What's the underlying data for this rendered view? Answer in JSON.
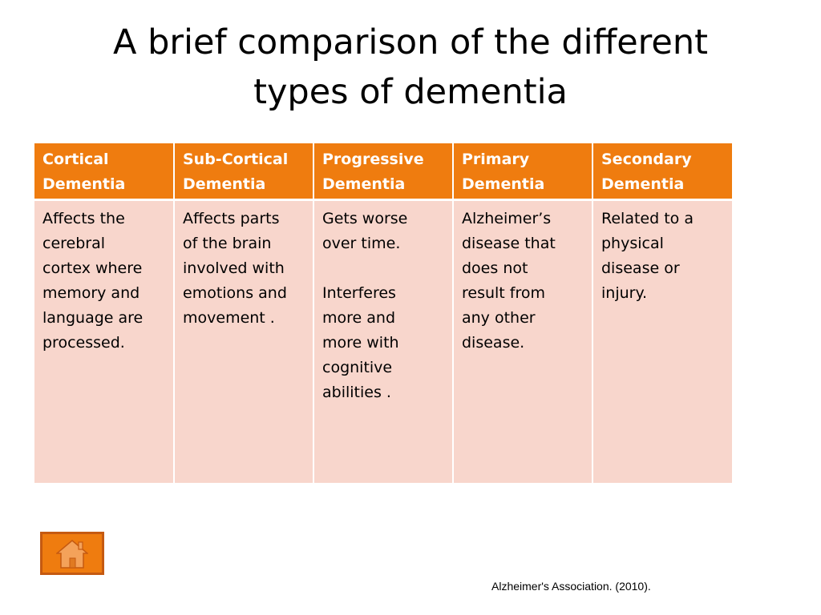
{
  "slide": {
    "title_line1": "A brief comparison of the different",
    "title_line2": "types of dementia",
    "citation": "Alzheimer's Association. (2010)."
  },
  "table": {
    "headers": [
      {
        "line1": "Cortical",
        "line2": "Dementia"
      },
      {
        "line1": "Sub-Cortical",
        "line2": "Dementia"
      },
      {
        "line1": "Progressive",
        "line2": "Dementia"
      },
      {
        "line1": "Primary",
        "line2": "Dementia"
      },
      {
        "line1": "Secondary",
        "line2": "Dementia"
      }
    ],
    "cells": [
      {
        "lines": [
          "Affects  the",
          "cerebral",
          "cortex where",
          "memory and",
          "language are",
          "processed."
        ]
      },
      {
        "lines": [
          "Affects parts",
          "of the brain",
          "involved with",
          "emotions and",
          "movement ."
        ]
      },
      {
        "lines": [
          "Gets worse",
          "over time."
        ],
        "lines2": [
          "Interferes",
          "more and",
          "more with",
          "cognitive",
          "abilities ."
        ]
      },
      {
        "lines": [
          "Alzheimer’s",
          "disease that",
          "does not",
          "result from",
          "any other",
          "disease."
        ]
      },
      {
        "lines": [
          "Related to a",
          "physical",
          "disease or",
          "injury."
        ]
      }
    ]
  },
  "icons": {
    "home": "home-icon"
  },
  "colors": {
    "header_bg": "#ef7c0f",
    "cell_bg": "#f8d6cc",
    "home_button_bg": "#ef7c0f",
    "home_button_border": "#c55a11"
  }
}
